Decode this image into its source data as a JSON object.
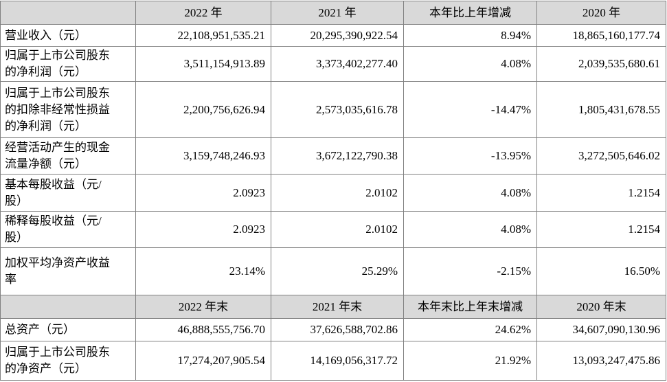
{
  "table": {
    "header": [
      "2022 年",
      "2021 年",
      "本年比上年增减",
      "2020 年"
    ],
    "rows": [
      {
        "label": [
          "营业收入（元）"
        ],
        "values": [
          "22,108,951,535.21",
          "20,295,390,922.54",
          "8.94%",
          "18,865,160,177.74"
        ]
      },
      {
        "label": [
          "归属于上市公司股东",
          "的净利润（元）"
        ],
        "values": [
          "3,511,154,913.89",
          "3,373,402,277.40",
          "4.08%",
          "2,039,535,680.61"
        ]
      },
      {
        "label": [
          "归属于上市公司股东",
          "的扣除非经常性损益",
          "的净利润（元）"
        ],
        "values": [
          "2,200,756,626.94",
          "2,573,035,616.78",
          "-14.47%",
          "1,805,431,678.55"
        ]
      },
      {
        "label": [
          "经营活动产生的现金",
          "流量净额（元）"
        ],
        "values": [
          "3,159,748,246.93",
          "3,672,122,790.38",
          "-13.95%",
          "3,272,505,646.02"
        ]
      },
      {
        "label": [
          "基本每股收益（元/",
          "股）"
        ],
        "values": [
          "2.0923",
          "2.0102",
          "4.08%",
          "1.2154"
        ]
      },
      {
        "label": [
          "稀释每股收益（元/",
          "股）"
        ],
        "values": [
          "2.0923",
          "2.0102",
          "4.08%",
          "1.2154"
        ]
      },
      {
        "label": [
          "加权平均净资产收益",
          "率"
        ],
        "values": [
          "23.14%",
          "25.29%",
          "-2.15%",
          "16.50%"
        ]
      }
    ],
    "header2": [
      "2022 年末",
      "2021 年末",
      "本年末比上年末增减",
      "2020 年末"
    ],
    "rows2": [
      {
        "label": [
          "总资产（元）"
        ],
        "values": [
          "46,888,555,756.70",
          "37,626,588,702.86",
          "24.62%",
          "34,607,090,130.96"
        ]
      },
      {
        "label": [
          "归属于上市公司股东",
          "的净资产（元）"
        ],
        "values": [
          "17,274,207,905.54",
          "14,169,056,317.72",
          "21.92%",
          "13,093,247,475.86"
        ]
      }
    ]
  }
}
